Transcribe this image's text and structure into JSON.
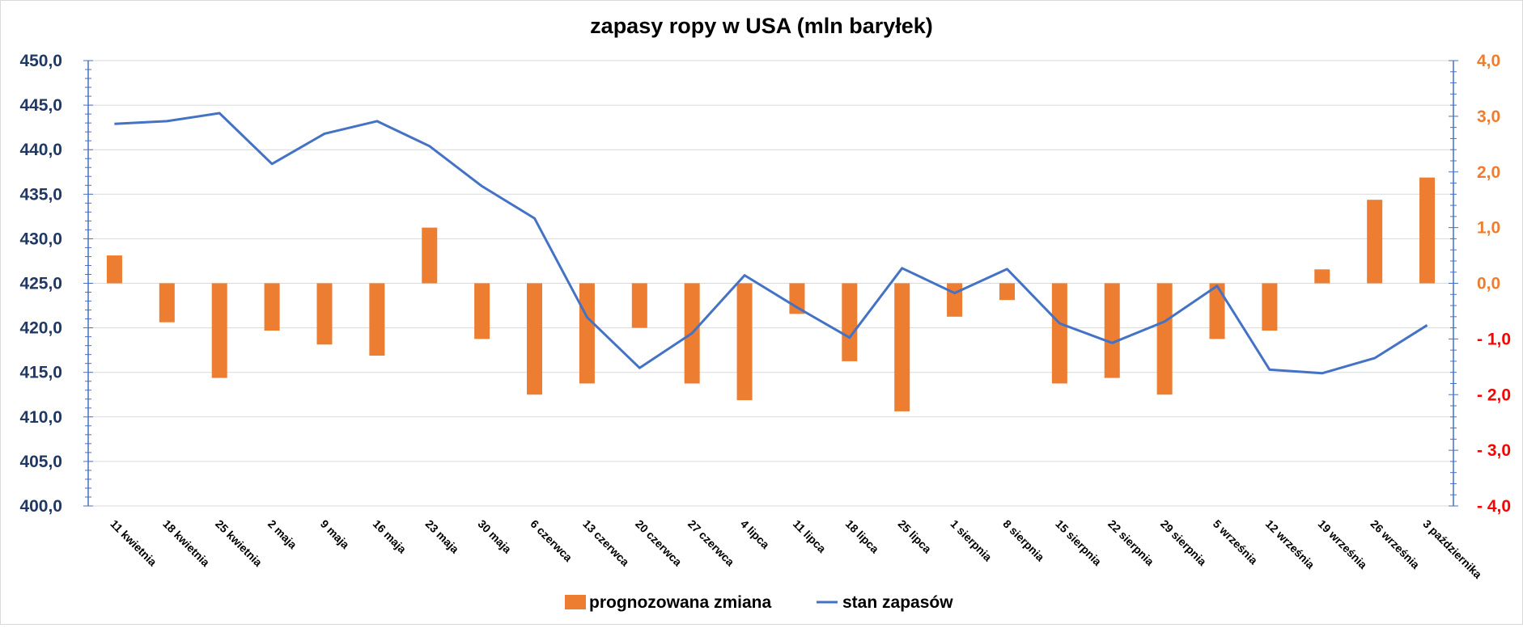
{
  "chart_data": {
    "type": "bar+line",
    "title": "zapasy ropy w USA (mln baryłek)",
    "categories": [
      "11 kwietnia",
      "18 kwietnia",
      "25 kwietnia",
      "2 maja",
      "9 maja",
      "16 maja",
      "23 maja",
      "30 maja",
      "6 czerwca",
      "13 czerwca",
      "20 czerwca",
      "27 czerwca",
      "4 lipca",
      "11 lipca",
      "18 lipca",
      "25 lipca",
      "1 sierpnia",
      "8 sierpnia",
      "15 sierpnia",
      "22 sierpnia",
      "29 sierpnia",
      "5 września",
      "12 września",
      "19 września",
      "26 września",
      "3 października"
    ],
    "left_axis": {
      "ylim": [
        400,
        450
      ],
      "ticks": [
        "400,0",
        "405,0",
        "410,0",
        "415,0",
        "420,0",
        "425,0",
        "430,0",
        "435,0",
        "440,0",
        "445,0",
        "450,0"
      ]
    },
    "right_axis": {
      "ylim": [
        -4,
        4
      ],
      "ticks": [
        "- 4,0",
        "- 3,0",
        "- 2,0",
        "- 1,0",
        "0,0",
        "1,0",
        "2,0",
        "3,0",
        "4,0"
      ]
    },
    "series": [
      {
        "name": "prognozowana zmiana",
        "type": "bar",
        "axis": "right",
        "color": "#ed7d31",
        "values": [
          0.5,
          -0.7,
          -1.7,
          -0.85,
          -1.1,
          -1.3,
          1.0,
          -1.0,
          -2.0,
          -1.8,
          -0.8,
          -1.8,
          -2.1,
          -0.55,
          -1.4,
          -2.3,
          -0.6,
          -0.3,
          -1.8,
          -1.7,
          -2.0,
          -1.0,
          -0.85,
          0.25,
          1.5,
          1.9
        ]
      },
      {
        "name": "stan zapasów",
        "type": "line",
        "axis": "left",
        "color": "#4472c4",
        "values": [
          442.9,
          443.2,
          444.1,
          438.4,
          441.8,
          443.2,
          440.4,
          435.9,
          432.3,
          421.2,
          415.5,
          419.4,
          425.9,
          422.3,
          418.9,
          426.7,
          423.9,
          426.6,
          420.5,
          418.3,
          420.7,
          424.7,
          415.3,
          414.9,
          416.6,
          420.3
        ]
      }
    ],
    "legend": {
      "position": "bottom",
      "entries": [
        "prognozowana zmiana",
        "stan zapasów"
      ]
    },
    "grid": true
  }
}
